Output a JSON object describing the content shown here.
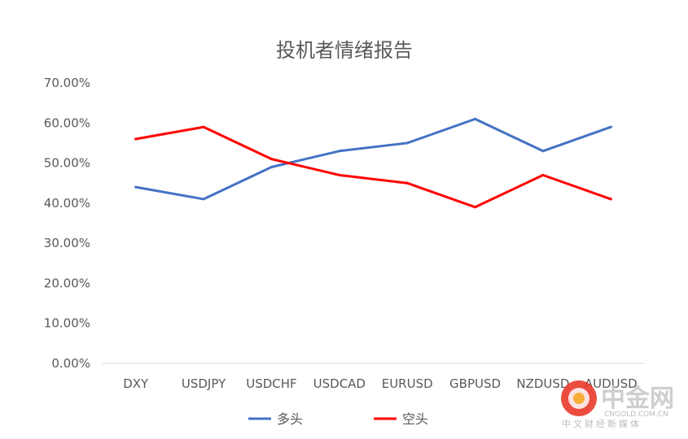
{
  "chart_data": {
    "type": "line",
    "title": "投机者情绪报告",
    "xlabel": "",
    "ylabel": "",
    "categories": [
      "DXY",
      "USDJPY",
      "USDCHF",
      "USDCAD",
      "EURUSD",
      "GBPUSD",
      "NZDUSD",
      "AUDUSD"
    ],
    "y_ticks": [
      "0.00%",
      "10.00%",
      "20.00%",
      "30.00%",
      "40.00%",
      "50.00%",
      "60.00%",
      "70.00%"
    ],
    "ylim": [
      0,
      70
    ],
    "grid": false,
    "legend_position": "bottom",
    "series": [
      {
        "name": "多头",
        "color": "#4472C4",
        "values": [
          44,
          41,
          49,
          53,
          55,
          61,
          53,
          59
        ]
      },
      {
        "name": "空头",
        "color": "#FF0000",
        "values": [
          56,
          59,
          51,
          47,
          45,
          39,
          47,
          41
        ]
      }
    ]
  },
  "watermark": {
    "brand": "中金网",
    "domain": "CNGOLD.COM.CN",
    "tagline": "中文财经新媒体",
    "logo_color": "#e8392a"
  }
}
